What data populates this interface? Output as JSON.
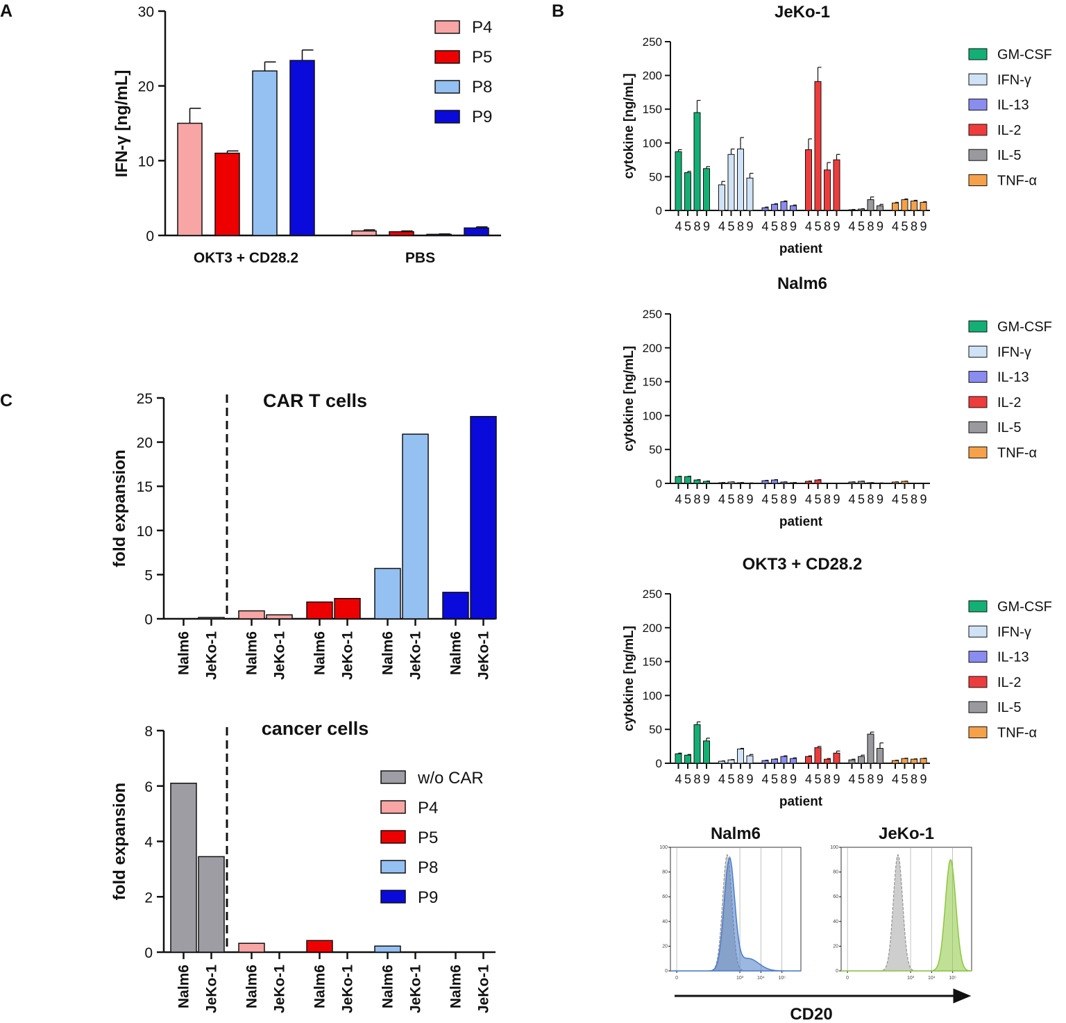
{
  "colors": {
    "P4": "#f7a5a5",
    "P5": "#ee0000",
    "P8": "#95c0f2",
    "P9": "#0a0adb",
    "wo_CAR": "#9d9da3",
    "GM-CSF": "#12b075",
    "IFN-γ": "#cfe2f6",
    "IL-13": "#8a8cf0",
    "IL-2": "#ee3c3c",
    "IL-5": "#9a9a9e",
    "TNF-α": "#f5a14a"
  },
  "chart_data": [
    {
      "id": "A",
      "panel_label": "A",
      "type": "bar",
      "ylabel": "IFN-γ [ng/mL]",
      "ylim": [
        0,
        30
      ],
      "yticks": [
        0,
        10,
        20,
        30
      ],
      "categories": [
        "OKT3 + CD28.2",
        "PBS"
      ],
      "series": [
        {
          "name": "P4",
          "values": [
            15.0,
            0.6
          ],
          "errors": [
            2.0,
            0.15
          ]
        },
        {
          "name": "P5",
          "values": [
            11.0,
            0.5
          ],
          "errors": [
            0.3,
            0.1
          ]
        },
        {
          "name": "P8",
          "values": [
            22.0,
            0.15
          ],
          "errors": [
            1.2,
            0.05
          ]
        },
        {
          "name": "P9",
          "values": [
            23.4,
            1.0
          ],
          "errors": [
            1.4,
            0.15
          ]
        }
      ],
      "legend": [
        "P4",
        "P5",
        "P8",
        "P9"
      ]
    },
    {
      "id": "B1",
      "panel_label": "B",
      "type": "bar",
      "title": "JeKo-1",
      "ylabel": "cytokine [ng/mL]",
      "xlabel": "patient",
      "ylim": [
        0,
        250
      ],
      "yticks": [
        0,
        50,
        100,
        150,
        200,
        250
      ],
      "patients": [
        "4",
        "5",
        "8",
        "9"
      ],
      "series": [
        {
          "name": "GM-CSF",
          "values": [
            87,
            56,
            145,
            62
          ],
          "errors": [
            3,
            2,
            18,
            3
          ]
        },
        {
          "name": "IFN-γ",
          "values": [
            38,
            83,
            91,
            48
          ],
          "errors": [
            5,
            8,
            17,
            7
          ]
        },
        {
          "name": "IL-13",
          "values": [
            4,
            9,
            13,
            7
          ],
          "errors": [
            1,
            1,
            1,
            1
          ]
        },
        {
          "name": "IL-2",
          "values": [
            90,
            191,
            60,
            75
          ],
          "errors": [
            16,
            21,
            11,
            8
          ]
        },
        {
          "name": "IL-5",
          "values": [
            1,
            2,
            16,
            7
          ],
          "errors": [
            0.5,
            0.5,
            4,
            2
          ]
        },
        {
          "name": "TNF-α",
          "values": [
            11,
            16,
            14,
            12
          ],
          "errors": [
            1,
            1,
            1,
            1
          ]
        }
      ],
      "legend": [
        "GM-CSF",
        "IFN-γ",
        "IL-13",
        "IL-2",
        "IL-5",
        "TNF-α"
      ]
    },
    {
      "id": "B2",
      "type": "bar",
      "title": "Nalm6",
      "ylabel": "cytokine [ng/mL]",
      "xlabel": "patient",
      "ylim": [
        0,
        250
      ],
      "yticks": [
        0,
        50,
        100,
        150,
        200,
        250
      ],
      "patients": [
        "4",
        "5",
        "8",
        "9"
      ],
      "series": [
        {
          "name": "GM-CSF",
          "values": [
            10,
            10,
            5,
            3
          ],
          "errors": [
            0.5,
            0.5,
            0.5,
            0.5
          ]
        },
        {
          "name": "IFN-γ",
          "values": [
            1,
            2,
            1,
            0.5
          ],
          "errors": [
            0.3,
            0.3,
            0.3,
            0.2
          ]
        },
        {
          "name": "IL-13",
          "values": [
            4,
            5,
            2,
            1
          ],
          "errors": [
            0.5,
            0.5,
            0.3,
            0.3
          ]
        },
        {
          "name": "IL-2",
          "values": [
            3,
            5,
            0,
            0
          ],
          "errors": [
            0.5,
            0.5,
            0,
            0
          ]
        },
        {
          "name": "IL-5",
          "values": [
            2,
            3,
            1,
            0.5
          ],
          "errors": [
            0.3,
            0.3,
            0.2,
            0.2
          ]
        },
        {
          "name": "TNF-α",
          "values": [
            2,
            3,
            0,
            0
          ],
          "errors": [
            0.3,
            0.3,
            0,
            0
          ]
        }
      ],
      "legend": [
        "GM-CSF",
        "IFN-γ",
        "IL-13",
        "IL-2",
        "IL-5",
        "TNF-α"
      ]
    },
    {
      "id": "B3",
      "type": "bar",
      "title": "OKT3 + CD28.2",
      "ylabel": "cytokine [ng/mL]",
      "xlabel": "patient",
      "ylim": [
        0,
        250
      ],
      "yticks": [
        0,
        50,
        100,
        150,
        200,
        250
      ],
      "patients": [
        "4",
        "5",
        "8",
        "9"
      ],
      "series": [
        {
          "name": "GM-CSF",
          "values": [
            14,
            12,
            57,
            33
          ],
          "errors": [
            1,
            1,
            4,
            4
          ]
        },
        {
          "name": "IFN-γ",
          "values": [
            3,
            5,
            21,
            11
          ],
          "errors": [
            0.5,
            0.5,
            1,
            2
          ]
        },
        {
          "name": "IL-13",
          "values": [
            4,
            6,
            10,
            7
          ],
          "errors": [
            0.5,
            0.5,
            1,
            1
          ]
        },
        {
          "name": "IL-2",
          "values": [
            10,
            23,
            6,
            15
          ],
          "errors": [
            1,
            2,
            1,
            3
          ]
        },
        {
          "name": "IL-5",
          "values": [
            5,
            10,
            43,
            22
          ],
          "errors": [
            1,
            2,
            3,
            8
          ]
        },
        {
          "name": "TNF-α",
          "values": [
            4,
            7,
            6,
            7
          ],
          "errors": [
            0.5,
            0.5,
            0.5,
            0.5
          ]
        }
      ],
      "legend": [
        "GM-CSF",
        "IFN-γ",
        "IL-13",
        "IL-2",
        "IL-5",
        "TNF-α"
      ]
    },
    {
      "id": "C1",
      "panel_label": "C",
      "type": "bar",
      "title": "CAR T cells",
      "ylabel": "fold expansion",
      "ylim": [
        0,
        25
      ],
      "yticks": [
        0,
        5,
        10,
        15,
        20,
        25
      ],
      "groups": [
        "w/o CAR",
        "P4",
        "P5",
        "P8",
        "P9"
      ],
      "xticklabels": [
        "Nalm6",
        "JeKo-1"
      ],
      "values": [
        [
          0,
          0.15
        ],
        [
          0.9,
          0.45
        ],
        [
          1.9,
          2.3
        ],
        [
          5.7,
          20.9
        ],
        [
          3.0,
          22.9
        ]
      ]
    },
    {
      "id": "C2",
      "type": "bar",
      "title": "cancer cells",
      "ylabel": "fold expansion",
      "ylim": [
        0,
        8
      ],
      "yticks": [
        0,
        2,
        4,
        6,
        8
      ],
      "groups": [
        "w/o CAR",
        "P4",
        "P5",
        "P8",
        "P9"
      ],
      "xticklabels": [
        "Nalm6",
        "JeKo-1"
      ],
      "values": [
        [
          6.1,
          3.45
        ],
        [
          0.32,
          0
        ],
        [
          0.42,
          0
        ],
        [
          0.22,
          0
        ],
        [
          0,
          0
        ]
      ],
      "legend": [
        "w/o CAR",
        "P4",
        "P5",
        "P8",
        "P9"
      ]
    },
    {
      "id": "Flow",
      "type": "histogram",
      "xlabel": "CD20",
      "xticks": [
        "0",
        "10³",
        "10⁴",
        "10⁵"
      ],
      "yticks": [
        "0",
        "20",
        "40",
        "60",
        "80",
        "100"
      ],
      "panels": [
        {
          "title": "Nalm6",
          "control_peak_log": 2.4,
          "stained_peak_log": 2.5,
          "stained_color": "#4a7cc7",
          "positive": false
        },
        {
          "title": "JeKo-1",
          "control_peak_log": 2.4,
          "stained_peak_log": 4.9,
          "stained_color": "#8cc63f",
          "positive": true
        }
      ]
    }
  ]
}
